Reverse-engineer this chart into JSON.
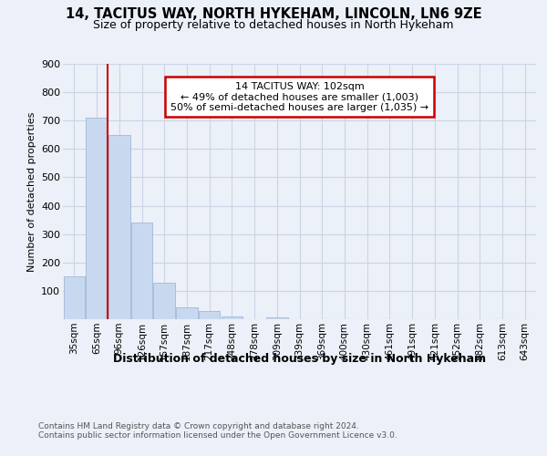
{
  "title_line1": "14, TACITUS WAY, NORTH HYKEHAM, LINCOLN, LN6 9ZE",
  "title_line2": "Size of property relative to detached houses in North Hykeham",
  "xlabel": "Distribution of detached houses by size in North Hykeham",
  "ylabel": "Number of detached properties",
  "categories": [
    "35sqm",
    "65sqm",
    "96sqm",
    "126sqm",
    "157sqm",
    "187sqm",
    "217sqm",
    "248sqm",
    "278sqm",
    "309sqm",
    "339sqm",
    "369sqm",
    "400sqm",
    "430sqm",
    "461sqm",
    "491sqm",
    "521sqm",
    "552sqm",
    "582sqm",
    "613sqm",
    "643sqm"
  ],
  "values": [
    150,
    710,
    650,
    340,
    128,
    42,
    28,
    10,
    0,
    8,
    0,
    0,
    0,
    0,
    0,
    0,
    0,
    0,
    0,
    0,
    0
  ],
  "bar_color": "#c8d9ef",
  "bar_edge_color": "#a0b8d8",
  "vline_x": 2,
  "vline_color": "#cc0000",
  "annotation_text": "14 TACITUS WAY: 102sqm\n← 49% of detached houses are smaller (1,003)\n50% of semi-detached houses are larger (1,035) →",
  "annotation_box_color": "#ffffff",
  "annotation_box_edge": "#cc0000",
  "ylim": [
    0,
    900
  ],
  "yticks": [
    0,
    100,
    200,
    300,
    400,
    500,
    600,
    700,
    800,
    900
  ],
  "grid_color": "#ccd4e4",
  "footnote": "Contains HM Land Registry data © Crown copyright and database right 2024.\nContains public sector information licensed under the Open Government Licence v3.0.",
  "bg_color": "#ecf0f8"
}
